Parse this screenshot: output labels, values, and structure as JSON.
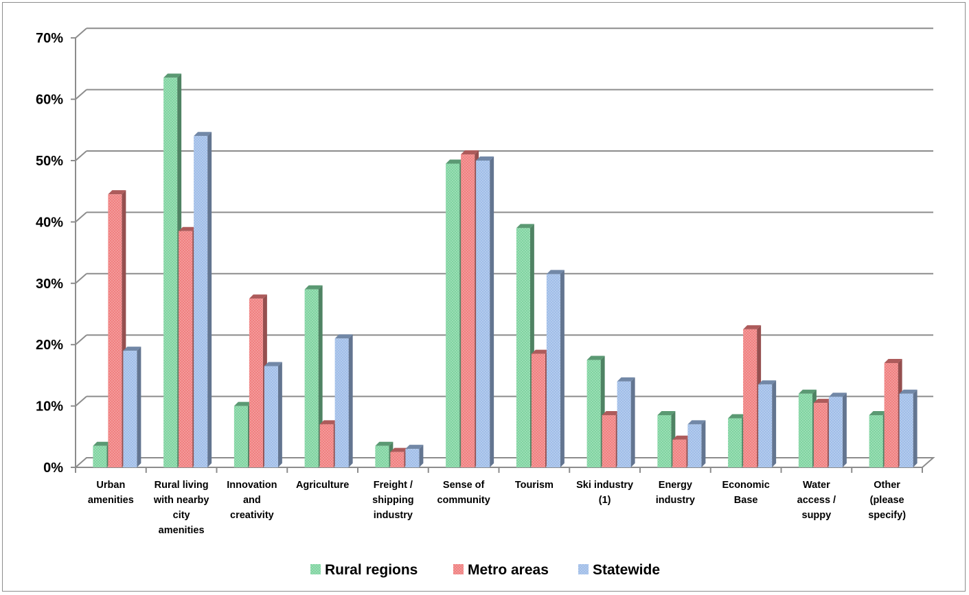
{
  "chart_data": {
    "type": "bar",
    "title": "",
    "xlabel": "",
    "ylabel": "",
    "ylim": [
      0,
      70
    ],
    "y_ticks": [
      "0%",
      "10%",
      "20%",
      "30%",
      "40%",
      "50%",
      "60%",
      "70%"
    ],
    "grid": true,
    "legend_position": "bottom",
    "categories": [
      [
        "Urban",
        "amenities"
      ],
      [
        "Rural living",
        "with nearby",
        "city",
        "amenities"
      ],
      [
        "Innovation",
        "and",
        "creativity"
      ],
      [
        "Agriculture"
      ],
      [
        "Freight /",
        "shipping",
        "industry"
      ],
      [
        "Sense of",
        "community"
      ],
      [
        "Tourism"
      ],
      [
        "Ski industry",
        "(1)"
      ],
      [
        "Energy",
        "industry"
      ],
      [
        "Economic",
        "Base"
      ],
      [
        "Water",
        "access /",
        "suppy"
      ],
      [
        "Other",
        "(please",
        "specify)"
      ]
    ],
    "series": [
      {
        "name": "Rural regions",
        "color": "#7fd4a0",
        "values": [
          3.5,
          63.5,
          10,
          29,
          3.5,
          49.5,
          39,
          17.5,
          8.5,
          8,
          12,
          8.5
        ]
      },
      {
        "name": "Metro areas",
        "color": "#f07f7f",
        "values": [
          44.5,
          38.5,
          27.5,
          7,
          2.5,
          51,
          18.5,
          8.5,
          4.5,
          22.5,
          10.5,
          17
        ]
      },
      {
        "name": "Statewide",
        "color": "#9fbde8",
        "values": [
          19,
          54,
          16.5,
          21,
          3,
          50,
          31.5,
          14,
          7,
          13.5,
          11.5,
          12
        ]
      }
    ]
  }
}
